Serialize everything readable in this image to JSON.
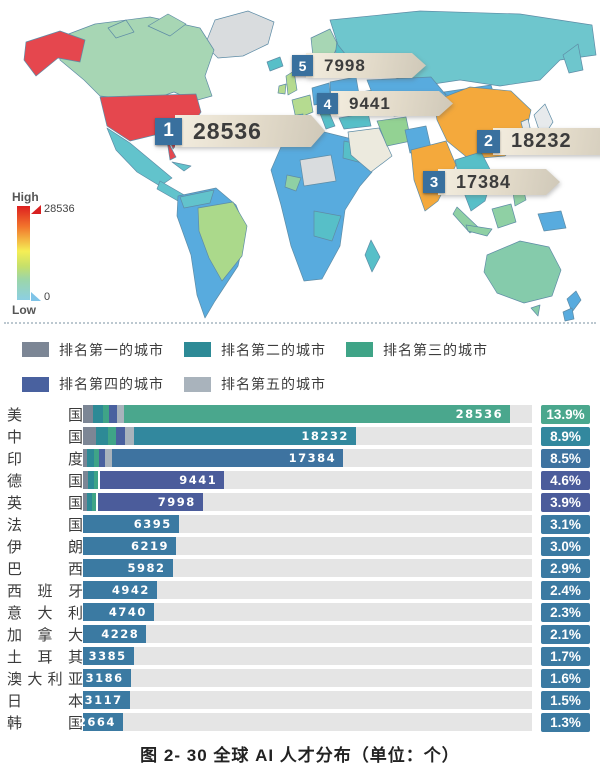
{
  "map": {
    "gradient_legend": {
      "high_label": "High",
      "low_label": "Low",
      "max_value": "28536",
      "min_value": "0"
    },
    "callouts": [
      {
        "rank": "1",
        "value": "28536"
      },
      {
        "rank": "2",
        "value": "18232"
      },
      {
        "rank": "3",
        "value": "17384"
      },
      {
        "rank": "4",
        "value": "9441"
      },
      {
        "rank": "5",
        "value": "7998"
      }
    ],
    "highlight_colors": {
      "rank1_country": "#e5474e",
      "rank2_3_countries": "#f4a93c",
      "callout_badge": "#39709e",
      "ribbon": "#e8e0cf"
    }
  },
  "city_legend": {
    "items": [
      {
        "label": "排名第一的城市",
        "color": "#7c8695"
      },
      {
        "label": "排名第二的城市",
        "color": "#2d8a96"
      },
      {
        "label": "排名第三的城市",
        "color": "#3fa487"
      },
      {
        "label": "排名第四的城市",
        "color": "#49619f"
      },
      {
        "label": "排名第五的城市",
        "color": "#a9b3bc"
      }
    ]
  },
  "chart_data": {
    "type": "bar",
    "orientation": "horizontal",
    "title": "图 2- 30 全球 AI 人才分布（单位：个）",
    "categories": [
      "美国",
      "中国",
      "印度",
      "德国",
      "英国",
      "法国",
      "伊朗",
      "巴西",
      "西班牙",
      "意大利",
      "加拿大",
      "土耳其",
      "澳大利亚",
      "日本",
      "韩国"
    ],
    "values": [
      28536,
      18232,
      17384,
      9441,
      7998,
      6395,
      6219,
      5982,
      4942,
      4740,
      4228,
      3385,
      3186,
      3117,
      2664
    ],
    "percent_labels": [
      "13.9%",
      "8.9%",
      "8.5%",
      "4.6%",
      "3.9%",
      "3.1%",
      "3.0%",
      "2.9%",
      "2.4%",
      "2.3%",
      "2.1%",
      "1.7%",
      "1.6%",
      "1.5%",
      "1.3%"
    ],
    "bar_colors": [
      "#4aa78d",
      "#32889e",
      "#3e73a0",
      "#4b5c9b",
      "#4b5c9b",
      "#3b7aa2",
      "#3b7aa2",
      "#3b7aa2",
      "#3b7aa2",
      "#3b7aa2",
      "#3b7aa2",
      "#3b7aa2",
      "#3b7aa2",
      "#3b7aa2",
      "#3b7aa2"
    ],
    "city_segments": [
      [
        {
          "color": "#7c8695",
          "width": 10
        },
        {
          "color": "#2d8a96",
          "width": 10
        },
        {
          "color": "#3fa487",
          "width": 6
        },
        {
          "color": "#49619f",
          "width": 8
        },
        {
          "color": "#a9b3bc",
          "width": 7
        }
      ],
      [
        {
          "color": "#7c8695",
          "width": 13
        },
        {
          "color": "#2d8a96",
          "width": 12
        },
        {
          "color": "#3fa487",
          "width": 8
        },
        {
          "color": "#49619f",
          "width": 9
        },
        {
          "color": "#a9b3bc",
          "width": 9
        }
      ],
      [
        {
          "color": "#7c8695",
          "width": 4
        },
        {
          "color": "#2d8a96",
          "width": 7
        },
        {
          "color": "#3fa487",
          "width": 5
        },
        {
          "color": "#49619f",
          "width": 6
        },
        {
          "color": "#a9b3bc",
          "width": 7
        }
      ],
      [
        {
          "color": "#7c8695",
          "width": 5
        },
        {
          "color": "#2d8a96",
          "width": 6
        },
        {
          "color": "#3fa487",
          "width": 4
        },
        {
          "color": "#ffffff",
          "width": 2
        }
      ],
      [
        {
          "color": "#7c8695",
          "width": 4
        },
        {
          "color": "#2d8a96",
          "width": 5
        },
        {
          "color": "#3fa487",
          "width": 4
        },
        {
          "color": "#ffffff",
          "width": 2
        }
      ],
      [],
      [],
      [],
      [],
      [],
      [],
      [],
      [],
      [],
      []
    ],
    "xlim": [
      0,
      30000
    ],
    "grid": false,
    "legend_position": "top",
    "track_color": "#e5e5e5"
  },
  "caption": "图 2- 30 全球 AI 人才分布（单位：个）"
}
